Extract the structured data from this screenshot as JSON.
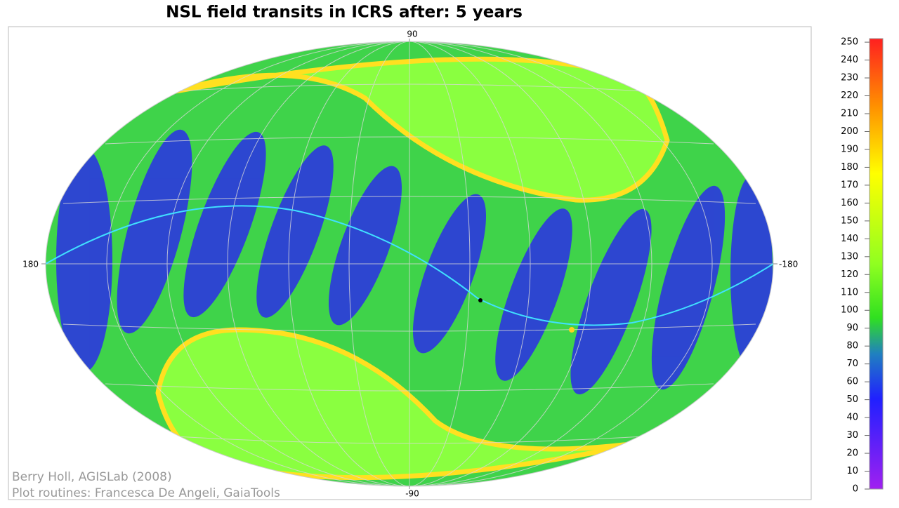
{
  "chart_data": {
    "type": "skymap",
    "title": "NSL field transits in ICRS after:  5 years",
    "xlim": [
      180,
      -180
    ],
    "xticks": [
      180,
      -180
    ],
    "ylim": [
      -90,
      90
    ],
    "yticks": [
      90,
      -90
    ],
    "colorbar": {
      "clim": [
        0,
        252
      ],
      "ticks": [
        0,
        10,
        20,
        30,
        40,
        50,
        60,
        70,
        80,
        90,
        100,
        110,
        120,
        130,
        140,
        150,
        160,
        170,
        180,
        190,
        200,
        210,
        220,
        230,
        240,
        250
      ]
    },
    "credits": [
      "Berry Holl, AGISLab (2008)",
      "Plot routines: Francesca De Angeli, GaiaTools"
    ]
  }
}
